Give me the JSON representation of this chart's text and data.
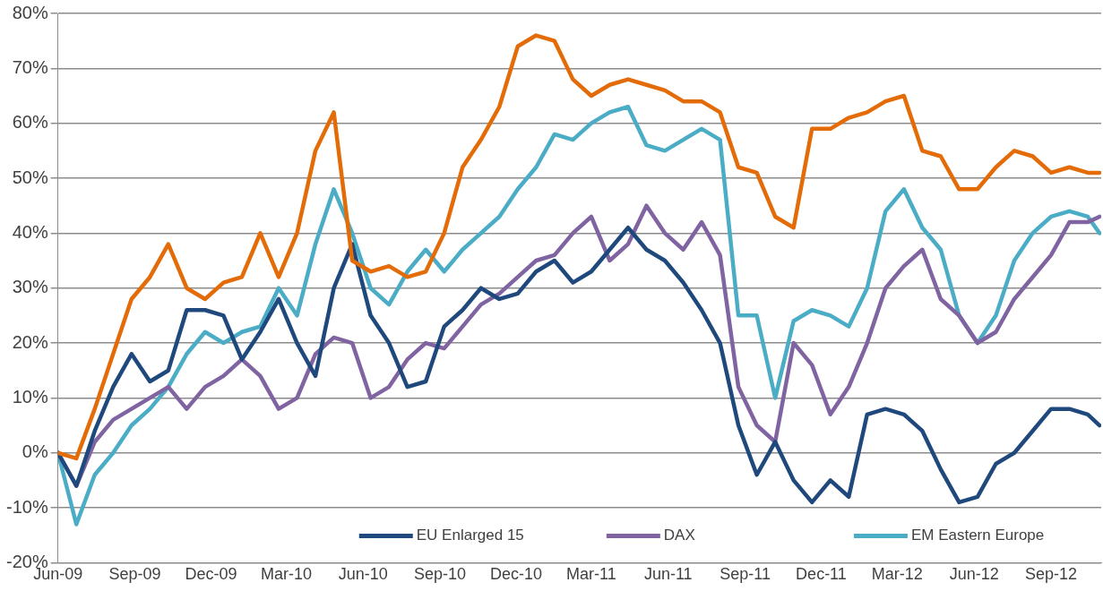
{
  "chart_data": {
    "type": "line",
    "x": [
      "2009-06-01",
      "2009-06-23",
      "2009-07-15",
      "2009-08-06",
      "2009-08-28",
      "2009-09-19",
      "2009-10-11",
      "2009-11-02",
      "2009-11-24",
      "2009-12-16",
      "2010-01-07",
      "2010-01-29",
      "2010-02-20",
      "2010-03-14",
      "2010-04-05",
      "2010-04-27",
      "2010-05-19",
      "2010-06-10",
      "2010-07-02",
      "2010-07-24",
      "2010-08-15",
      "2010-09-06",
      "2010-09-28",
      "2010-10-20",
      "2010-11-11",
      "2010-12-03",
      "2010-12-25",
      "2011-01-16",
      "2011-02-07",
      "2011-03-01",
      "2011-03-23",
      "2011-04-14",
      "2011-05-06",
      "2011-05-28",
      "2011-06-19",
      "2011-07-11",
      "2011-08-02",
      "2011-08-24",
      "2011-09-15",
      "2011-10-07",
      "2011-10-29",
      "2011-11-20",
      "2011-12-12",
      "2012-01-03",
      "2012-01-25",
      "2012-02-16",
      "2012-03-09",
      "2012-03-31",
      "2012-04-22",
      "2012-05-14",
      "2012-06-05",
      "2012-06-27",
      "2012-07-19",
      "2012-08-10",
      "2012-09-01",
      "2012-09-23",
      "2012-10-15",
      "2012-10-29"
    ],
    "series": [
      {
        "color": "#e36c09",
        "values": [
          0,
          -1,
          8,
          18,
          28,
          32,
          38,
          30,
          28,
          31,
          32,
          40,
          32,
          40,
          55,
          62,
          35,
          33,
          34,
          32,
          33,
          40,
          52,
          57,
          63,
          74,
          76,
          75,
          68,
          65,
          67,
          68,
          67,
          66,
          64,
          64,
          62,
          52,
          51,
          43,
          41,
          59,
          59,
          61,
          62,
          64,
          65,
          55,
          54,
          48,
          48,
          52,
          55,
          54,
          51,
          52,
          51,
          51
        ]
      },
      {
        "name": "EU Enlarged 15",
        "color": "#1f497d",
        "values": [
          0,
          -6,
          4,
          12,
          18,
          13,
          15,
          26,
          26,
          25,
          17,
          22,
          28,
          20,
          14,
          30,
          38,
          25,
          20,
          12,
          13,
          23,
          26,
          30,
          28,
          29,
          33,
          35,
          31,
          33,
          37,
          41,
          37,
          35,
          31,
          26,
          20,
          5,
          -4,
          2,
          -5,
          -9,
          -5,
          -8,
          7,
          8,
          7,
          4,
          -3,
          -9,
          -8,
          -2,
          0,
          4,
          8,
          8,
          7,
          5
        ]
      },
      {
        "name": "DAX",
        "color": "#8064a2",
        "values": [
          0,
          -6,
          2,
          6,
          8,
          10,
          12,
          8,
          12,
          14,
          17,
          14,
          8,
          10,
          18,
          21,
          20,
          10,
          12,
          17,
          20,
          19,
          23,
          27,
          29,
          32,
          35,
          36,
          40,
          43,
          35,
          38,
          45,
          40,
          37,
          42,
          36,
          12,
          5,
          2,
          20,
          16,
          7,
          12,
          20,
          30,
          34,
          37,
          28,
          25,
          20,
          22,
          28,
          32,
          36,
          42,
          42,
          43
        ]
      },
      {
        "name": "EM Eastern Europe",
        "color": "#4bacc6",
        "values": [
          0,
          -13,
          -4,
          0,
          5,
          8,
          12,
          18,
          22,
          20,
          22,
          23,
          30,
          25,
          38,
          48,
          40,
          30,
          27,
          33,
          37,
          33,
          37,
          40,
          43,
          48,
          52,
          58,
          57,
          60,
          62,
          63,
          56,
          55,
          57,
          59,
          57,
          25,
          25,
          10,
          24,
          26,
          25,
          23,
          30,
          44,
          48,
          41,
          37,
          25,
          20,
          25,
          35,
          40,
          43,
          44,
          43,
          40
        ]
      }
    ],
    "xlim": [
      "2009-06-01",
      "2012-10-31"
    ],
    "xticks": [
      {
        "value": "2009-06-01",
        "label": "Jun-09"
      },
      {
        "value": "2009-09-01",
        "label": "Sep-09"
      },
      {
        "value": "2009-12-01",
        "label": "Dec-09"
      },
      {
        "value": "2010-03-01",
        "label": "Mar-10"
      },
      {
        "value": "2010-06-01",
        "label": "Jun-10"
      },
      {
        "value": "2010-09-01",
        "label": "Sep-10"
      },
      {
        "value": "2010-12-01",
        "label": "Dec-10"
      },
      {
        "value": "2011-03-01",
        "label": "Mar-11"
      },
      {
        "value": "2011-06-01",
        "label": "Jun-11"
      },
      {
        "value": "2011-09-01",
        "label": "Sep-11"
      },
      {
        "value": "2011-12-01",
        "label": "Dec-11"
      },
      {
        "value": "2012-03-01",
        "label": "Mar-12"
      },
      {
        "value": "2012-06-01",
        "label": "Jun-12"
      },
      {
        "value": "2012-09-01",
        "label": "Sep-12"
      }
    ],
    "ylim": [
      -20,
      80
    ],
    "yticks": [
      {
        "value": -20,
        "label": "-20%"
      },
      {
        "value": -10,
        "label": "-10%"
      },
      {
        "value": 0,
        "label": "0%"
      },
      {
        "value": 10,
        "label": "10%"
      },
      {
        "value": 20,
        "label": "20%"
      },
      {
        "value": 30,
        "label": "30%"
      },
      {
        "value": 40,
        "label": "40%"
      },
      {
        "value": 50,
        "label": "50%"
      },
      {
        "value": 60,
        "label": "60%"
      },
      {
        "value": 70,
        "label": "70%"
      },
      {
        "value": 80,
        "label": "80%"
      }
    ],
    "grid": "y",
    "legend": "bottom",
    "marker": "none",
    "line_style": "solid"
  }
}
